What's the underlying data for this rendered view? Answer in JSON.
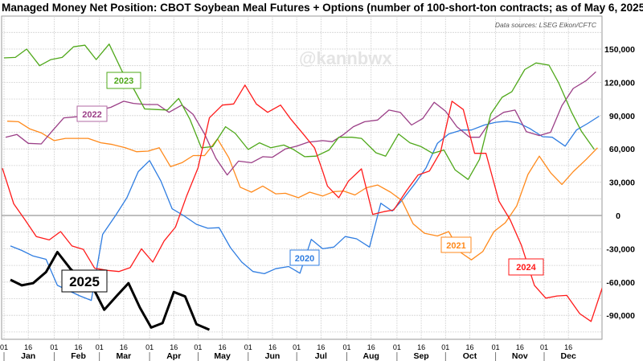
{
  "chart_data": {
    "type": "line",
    "title": "Managed Money Net Position: CBOT Soybean Meal Futures + Options (number of 100-short-ton contracts; as of May 6, 2025)",
    "source": "Data sources: LSEG Eikon/CFTC",
    "watermark": "@kannbwx",
    "x_unit": "day of year",
    "xlim": [
      -1.5,
      370
    ],
    "ylim": [
      -112000,
      168000
    ],
    "yticks": [
      150000,
      120000,
      90000,
      60000,
      30000,
      0,
      -30000,
      -60000,
      -90000
    ],
    "ytick_labels": [
      "150,000",
      "120,000",
      "90,000",
      "60,000",
      "30,000",
      "0",
      "-30,000",
      "-60,000",
      "-90,000"
    ],
    "months": [
      "Jan",
      "Feb",
      "Mar",
      "Apr",
      "May",
      "Jun",
      "Jul",
      "Aug",
      "Sep",
      "Oct",
      "Nov",
      "Dec"
    ],
    "month_start_days": [
      0,
      31,
      59,
      90,
      120,
      151,
      181,
      212,
      243,
      273,
      304,
      334
    ],
    "day_ticks": [
      "01",
      "16"
    ],
    "grid": true,
    "series": [
      {
        "name": "2020",
        "color": "#2f7de1",
        "width": 1.3,
        "points": [
          [
            4,
            -27500
          ],
          [
            11,
            -31500
          ],
          [
            18,
            -36500
          ],
          [
            26,
            -39500
          ],
          [
            33,
            -63000
          ],
          [
            41,
            -68500
          ],
          [
            47,
            -72500
          ],
          [
            54,
            -76500
          ],
          [
            61,
            -17000
          ],
          [
            69,
            0
          ],
          [
            76,
            16000
          ],
          [
            83,
            39500
          ],
          [
            90,
            49500
          ],
          [
            97,
            31000
          ],
          [
            104,
            6000
          ],
          [
            111,
            0
          ],
          [
            119,
            -8000
          ],
          [
            126,
            -11500
          ],
          [
            133,
            -11000
          ],
          [
            140,
            -29000
          ],
          [
            147,
            -42000
          ],
          [
            154,
            -50500
          ],
          [
            161,
            -52500
          ],
          [
            168,
            -48000
          ],
          [
            176,
            -46000
          ],
          [
            183,
            -52000
          ],
          [
            190,
            -21500
          ],
          [
            197,
            -30000
          ],
          [
            204,
            -28500
          ],
          [
            211,
            -19000
          ],
          [
            218,
            -21000
          ],
          [
            226,
            -28500
          ],
          [
            233,
            11000
          ],
          [
            240,
            4000
          ],
          [
            246,
            13500
          ],
          [
            254,
            28500
          ],
          [
            261,
            43000
          ],
          [
            268,
            65000
          ],
          [
            275,
            73500
          ],
          [
            283,
            77000
          ],
          [
            289,
            77000
          ],
          [
            297,
            81500
          ],
          [
            304,
            84000
          ],
          [
            311,
            85000
          ],
          [
            318,
            83500
          ],
          [
            325,
            78500
          ],
          [
            333,
            71000
          ],
          [
            339,
            70500
          ],
          [
            347,
            62500
          ],
          [
            354,
            77000
          ],
          [
            361,
            83000
          ],
          [
            368,
            89500
          ]
        ]
      },
      {
        "name": "2021",
        "color": "#ff8a1c",
        "width": 1.3,
        "points": [
          [
            2,
            85000
          ],
          [
            9,
            84500
          ],
          [
            16,
            78000
          ],
          [
            23,
            74500
          ],
          [
            31,
            67500
          ],
          [
            38,
            69500
          ],
          [
            46,
            69500
          ],
          [
            52,
            69500
          ],
          [
            60,
            65500
          ],
          [
            67,
            64000
          ],
          [
            75,
            61000
          ],
          [
            82,
            57500
          ],
          [
            89,
            58000
          ],
          [
            96,
            61000
          ],
          [
            103,
            44000
          ],
          [
            110,
            47500
          ],
          [
            117,
            54000
          ],
          [
            124,
            54000
          ],
          [
            132,
            69000
          ],
          [
            139,
            52000
          ],
          [
            146,
            25500
          ],
          [
            153,
            21000
          ],
          [
            160,
            26500
          ],
          [
            168,
            19500
          ],
          [
            174,
            20000
          ],
          [
            182,
            16000
          ],
          [
            189,
            21000
          ],
          [
            197,
            17500
          ],
          [
            204,
            21500
          ],
          [
            210,
            22000
          ],
          [
            217,
            18500
          ],
          [
            224,
            25000
          ],
          [
            231,
            27500
          ],
          [
            239,
            21000
          ],
          [
            246,
            13500
          ],
          [
            253,
            -7500
          ],
          [
            260,
            -16000
          ],
          [
            268,
            -18500
          ],
          [
            275,
            -14500
          ],
          [
            282,
            -33000
          ],
          [
            289,
            -40000
          ],
          [
            296,
            -32500
          ],
          [
            303,
            -14500
          ],
          [
            310,
            -6500
          ],
          [
            317,
            8500
          ],
          [
            324,
            37000
          ],
          [
            331,
            53500
          ],
          [
            338,
            38500
          ],
          [
            345,
            28000
          ],
          [
            352,
            39500
          ],
          [
            360,
            50500
          ],
          [
            367,
            61000
          ]
        ]
      },
      {
        "name": "2022",
        "color": "#9b3f87",
        "width": 1.3,
        "points": [
          [
            1,
            70500
          ],
          [
            8,
            73000
          ],
          [
            15,
            65000
          ],
          [
            23,
            64500
          ],
          [
            30,
            76500
          ],
          [
            37,
            88000
          ],
          [
            45,
            89000
          ],
          [
            52,
            93000
          ],
          [
            59,
            95000
          ],
          [
            66,
            97500
          ],
          [
            74,
            103000
          ],
          [
            80,
            101000
          ],
          [
            88,
            100000
          ],
          [
            95,
            100000
          ],
          [
            102,
            93000
          ],
          [
            110,
            99500
          ],
          [
            117,
            91000
          ],
          [
            124,
            73500
          ],
          [
            131,
            51500
          ],
          [
            138,
            36500
          ],
          [
            145,
            49000
          ],
          [
            153,
            47500
          ],
          [
            160,
            53000
          ],
          [
            166,
            52500
          ],
          [
            174,
            60000
          ],
          [
            181,
            62500
          ],
          [
            188,
            66000
          ],
          [
            197,
            67500
          ],
          [
            203,
            66500
          ],
          [
            210,
            73000
          ],
          [
            216,
            80000
          ],
          [
            223,
            84500
          ],
          [
            231,
            86000
          ],
          [
            238,
            95000
          ],
          [
            245,
            93000
          ],
          [
            252,
            81500
          ],
          [
            259,
            87500
          ],
          [
            266,
            102000
          ],
          [
            273,
            94000
          ],
          [
            280,
            80000
          ],
          [
            288,
            70500
          ],
          [
            294,
            70500
          ],
          [
            301,
            85500
          ],
          [
            309,
            93000
          ],
          [
            316,
            95000
          ],
          [
            323,
            75500
          ],
          [
            331,
            72000
          ],
          [
            338,
            75000
          ],
          [
            345,
            99000
          ],
          [
            352,
            114500
          ],
          [
            360,
            121500
          ],
          [
            366,
            129500
          ]
        ]
      },
      {
        "name": "2023",
        "color": "#4fa81a",
        "width": 1.3,
        "points": [
          [
            0,
            142000
          ],
          [
            7,
            142500
          ],
          [
            14,
            150000
          ],
          [
            22,
            135000
          ],
          [
            29,
            140500
          ],
          [
            36,
            142500
          ],
          [
            43,
            152000
          ],
          [
            50,
            153500
          ],
          [
            57,
            140500
          ],
          [
            65,
            154500
          ],
          [
            73,
            130000
          ],
          [
            80,
            114500
          ],
          [
            87,
            96000
          ],
          [
            94,
            95500
          ],
          [
            101,
            95000
          ],
          [
            108,
            105500
          ],
          [
            115,
            86500
          ],
          [
            122,
            61000
          ],
          [
            129,
            62000
          ],
          [
            137,
            80000
          ],
          [
            143,
            74000
          ],
          [
            151,
            59500
          ],
          [
            158,
            65500
          ],
          [
            165,
            61000
          ],
          [
            173,
            63500
          ],
          [
            179,
            59500
          ],
          [
            186,
            53000
          ],
          [
            193,
            53500
          ],
          [
            201,
            59000
          ],
          [
            207,
            70500
          ],
          [
            215,
            70500
          ],
          [
            221,
            69500
          ],
          [
            230,
            56500
          ],
          [
            236,
            53500
          ],
          [
            244,
            73500
          ],
          [
            251,
            65500
          ],
          [
            258,
            62000
          ],
          [
            265,
            56000
          ],
          [
            272,
            59000
          ],
          [
            279,
            41000
          ],
          [
            287,
            32500
          ],
          [
            294,
            50500
          ],
          [
            301,
            91500
          ],
          [
            308,
            106500
          ],
          [
            314,
            111500
          ],
          [
            322,
            131500
          ],
          [
            329,
            137500
          ],
          [
            337,
            135500
          ],
          [
            343,
            119500
          ],
          [
            351,
            93000
          ],
          [
            357,
            76000
          ],
          [
            365,
            59500
          ]
        ]
      },
      {
        "name": "2024",
        "color": "#ff1a1a",
        "width": 1.3,
        "points": [
          [
            -1,
            42500
          ],
          [
            6,
            10500
          ],
          [
            13,
            -4000
          ],
          [
            20,
            -19000
          ],
          [
            28,
            -22000
          ],
          [
            35,
            -14500
          ],
          [
            42,
            -27500
          ],
          [
            49,
            -30500
          ],
          [
            56,
            -47500
          ],
          [
            64,
            -49500
          ],
          [
            71,
            -50500
          ],
          [
            78,
            -47000
          ],
          [
            85,
            -30000
          ],
          [
            92,
            -42000
          ],
          [
            99,
            -23000
          ],
          [
            106,
            -10500
          ],
          [
            113,
            18000
          ],
          [
            120,
            43000
          ],
          [
            127,
            88000
          ],
          [
            135,
            99500
          ],
          [
            142,
            100500
          ],
          [
            149,
            117500
          ],
          [
            156,
            100500
          ],
          [
            163,
            93000
          ],
          [
            171,
            99500
          ],
          [
            177,
            87500
          ],
          [
            185,
            73500
          ],
          [
            192,
            61000
          ],
          [
            197,
            40000
          ],
          [
            200,
            26500
          ],
          [
            207,
            16000
          ],
          [
            213,
            31000
          ],
          [
            221,
            42000
          ],
          [
            228,
            1000
          ],
          [
            235,
            3500
          ],
          [
            241,
            5000
          ],
          [
            249,
            22500
          ],
          [
            256,
            36500
          ],
          [
            263,
            40000
          ],
          [
            270,
            57500
          ],
          [
            277,
            103000
          ],
          [
            284,
            95500
          ],
          [
            291,
            56000
          ],
          [
            298,
            56000
          ],
          [
            306,
            13000
          ],
          [
            313,
            -4000
          ],
          [
            320,
            -27000
          ],
          [
            328,
            -63000
          ],
          [
            335,
            -74500
          ],
          [
            342,
            -72500
          ],
          [
            348,
            -72000
          ],
          [
            356,
            -88500
          ],
          [
            363,
            -95500
          ],
          [
            370,
            -65000
          ]
        ]
      },
      {
        "name": "2025",
        "color": "#000000",
        "width": 3,
        "points": [
          [
            4,
            -58000
          ],
          [
            11,
            -63000
          ],
          [
            18,
            -61000
          ],
          [
            26,
            -51000
          ],
          [
            33,
            -33000
          ],
          [
            41,
            -48000
          ],
          [
            56,
            -68000
          ],
          [
            62,
            -85000
          ],
          [
            70,
            -72000
          ],
          [
            77,
            -61000
          ],
          [
            84,
            -83000
          ],
          [
            91,
            -101000
          ],
          [
            98,
            -97000
          ],
          [
            105,
            -69000
          ],
          [
            112,
            -73000
          ],
          [
            119,
            -98000
          ],
          [
            127,
            -103000
          ]
        ]
      }
    ],
    "annotations": [
      {
        "text": "2023",
        "series": "2023"
      },
      {
        "text": "2022",
        "series": "2022"
      },
      {
        "text": "2025",
        "series": "2025"
      },
      {
        "text": "2020",
        "series": "2020"
      },
      {
        "text": "2021",
        "series": "2021"
      },
      {
        "text": "2024",
        "series": "2024"
      }
    ]
  }
}
